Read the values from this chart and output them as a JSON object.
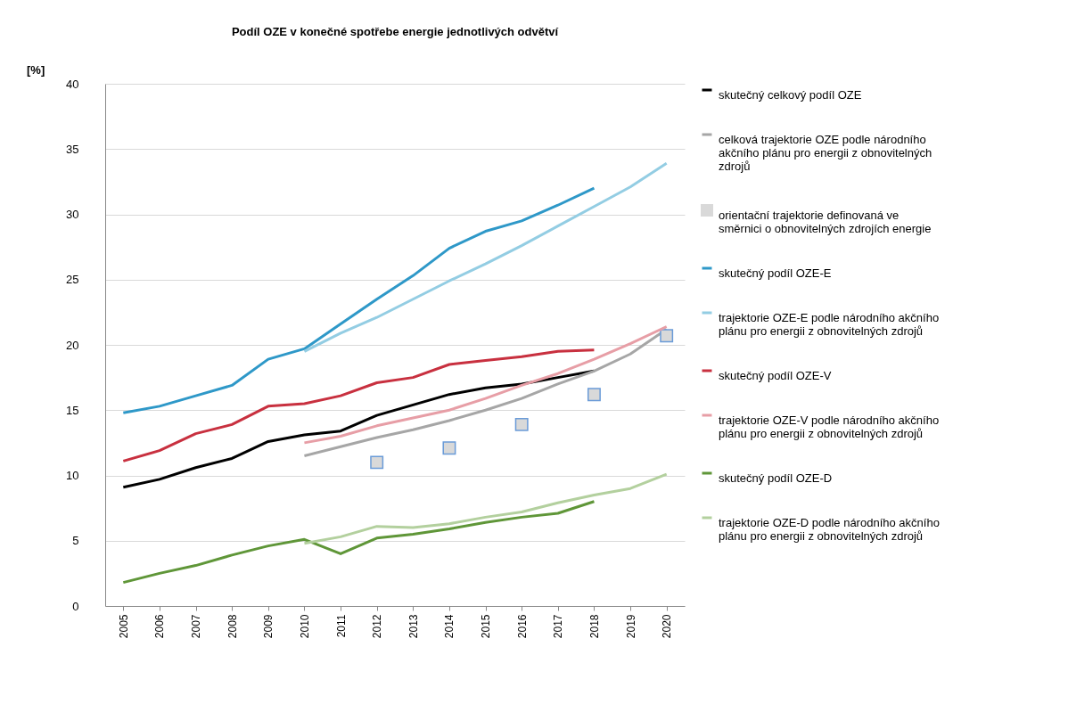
{
  "chart_data": {
    "type": "line",
    "title": "Podíl OZE v konečné spotřebe energie jednotlivých odvětví",
    "ylabel": "[%]",
    "categories": [
      "2005",
      "2006",
      "2007",
      "2008",
      "2009",
      "2010",
      "2011",
      "2012",
      "2013",
      "2014",
      "2015",
      "2016",
      "2017",
      "2018",
      "2019",
      "2020"
    ],
    "ylim": [
      0,
      40
    ],
    "yticks": [
      0,
      5,
      10,
      15,
      20,
      25,
      30,
      35,
      40
    ],
    "grid": "y",
    "legend": "right",
    "marker": "none",
    "line_style": "solid",
    "series": [
      {
        "name": "skutečný celkový podíl OZE",
        "color": "#000000",
        "values": [
          9.1,
          9.7,
          10.6,
          11.3,
          12.6,
          13.1,
          13.4,
          14.6,
          15.4,
          16.2,
          16.7,
          17.0,
          17.5,
          18.0,
          null,
          null
        ]
      },
      {
        "name": "celková trajektorie OZE podle národního akčního plánu pro energii z obnovitelných zdrojů",
        "color": "#a6a6a6",
        "values": [
          null,
          null,
          null,
          null,
          null,
          11.5,
          12.2,
          12.9,
          13.5,
          14.2,
          15.0,
          15.9,
          17.0,
          18.0,
          19.3,
          21.2
        ]
      },
      {
        "name": "orientační trajektorie definovaná ve směrnici o obnovitelných zdrojích energie",
        "type": "scatter",
        "marker": "square",
        "color": "#d9d9d9",
        "values": [
          null,
          null,
          null,
          null,
          null,
          null,
          null,
          11.0,
          null,
          12.1,
          null,
          13.9,
          null,
          16.2,
          null,
          20.7
        ]
      },
      {
        "name": "skutečný podíl OZE-E",
        "color": "#2e98c8",
        "values": [
          14.8,
          15.3,
          16.1,
          16.9,
          18.9,
          19.7,
          21.6,
          23.5,
          25.3,
          27.4,
          28.7,
          29.5,
          30.7,
          32.0,
          null,
          null
        ]
      },
      {
        "name": "trajektorie OZE-E podle národního akčního plánu pro energii z obnovitelných zdrojů",
        "color": "#93cde3",
        "values": [
          null,
          null,
          null,
          null,
          null,
          19.5,
          20.9,
          22.1,
          23.5,
          24.9,
          26.2,
          27.6,
          29.1,
          30.6,
          32.1,
          33.9
        ]
      },
      {
        "name": "skutečný podíl OZE-V",
        "color": "#c8303f",
        "values": [
          11.1,
          11.9,
          13.2,
          13.9,
          15.3,
          15.5,
          16.1,
          17.1,
          17.5,
          18.5,
          18.8,
          19.1,
          19.5,
          19.6,
          null,
          null
        ]
      },
      {
        "name": "trajektorie OZE-V podle národního akčního plánu pro energii z obnovitelných zdrojů",
        "color": "#e79ea6",
        "values": [
          null,
          null,
          null,
          null,
          null,
          12.5,
          13.0,
          13.8,
          14.4,
          15.0,
          15.9,
          16.9,
          17.8,
          18.9,
          20.1,
          21.4
        ]
      },
      {
        "name": "skutečný podíl OZE-D",
        "color": "#5f9638",
        "values": [
          1.8,
          2.5,
          3.1,
          3.9,
          4.6,
          5.1,
          4.0,
          5.2,
          5.5,
          5.9,
          6.4,
          6.8,
          7.1,
          8.0,
          null,
          null
        ]
      },
      {
        "name": "trajektorie OZE-D podle národního akčního plánu pro energii z obnovitelných zdrojů",
        "color": "#b3d09e",
        "values": [
          null,
          null,
          null,
          null,
          null,
          4.8,
          5.3,
          6.1,
          6.0,
          6.3,
          6.8,
          7.2,
          7.9,
          8.5,
          9.0,
          10.1
        ]
      }
    ]
  }
}
